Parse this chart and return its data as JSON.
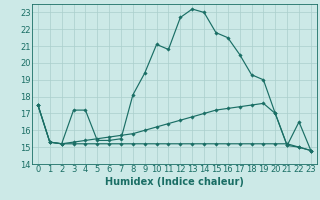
{
  "xlabel": "Humidex (Indice chaleur)",
  "bg_color": "#cce9e7",
  "grid_color": "#aacfcc",
  "line_color": "#1a6e65",
  "x_values": [
    0,
    1,
    2,
    3,
    4,
    5,
    6,
    7,
    8,
    9,
    10,
    11,
    12,
    13,
    14,
    15,
    16,
    17,
    18,
    19,
    20,
    21,
    22,
    23
  ],
  "series": [
    [
      17.5,
      15.3,
      15.2,
      17.2,
      17.2,
      15.4,
      15.4,
      15.5,
      18.1,
      19.4,
      21.1,
      20.8,
      22.7,
      23.2,
      23.0,
      21.8,
      21.5,
      20.5,
      19.3,
      19.0,
      17.0,
      15.1,
      16.5,
      14.8
    ],
    [
      17.5,
      15.3,
      15.2,
      15.3,
      15.4,
      15.5,
      15.6,
      15.7,
      15.8,
      16.0,
      16.2,
      16.4,
      16.6,
      16.8,
      17.0,
      17.2,
      17.3,
      17.4,
      17.5,
      17.6,
      17.0,
      15.1,
      15.0,
      14.8
    ],
    [
      17.5,
      15.3,
      15.2,
      15.2,
      15.2,
      15.2,
      15.2,
      15.2,
      15.2,
      15.2,
      15.2,
      15.2,
      15.2,
      15.2,
      15.2,
      15.2,
      15.2,
      15.2,
      15.2,
      15.2,
      15.2,
      15.2,
      15.0,
      14.8
    ]
  ],
  "ylim": [
    14,
    23.5
  ],
  "xlim": [
    -0.5,
    23.5
  ],
  "yticks": [
    14,
    15,
    16,
    17,
    18,
    19,
    20,
    21,
    22,
    23
  ],
  "xticks": [
    0,
    1,
    2,
    3,
    4,
    5,
    6,
    7,
    8,
    9,
    10,
    11,
    12,
    13,
    14,
    15,
    16,
    17,
    18,
    19,
    20,
    21,
    22,
    23
  ],
  "xlabel_fontsize": 7,
  "tick_fontsize": 6,
  "figsize": [
    3.2,
    2.0
  ],
  "dpi": 100
}
